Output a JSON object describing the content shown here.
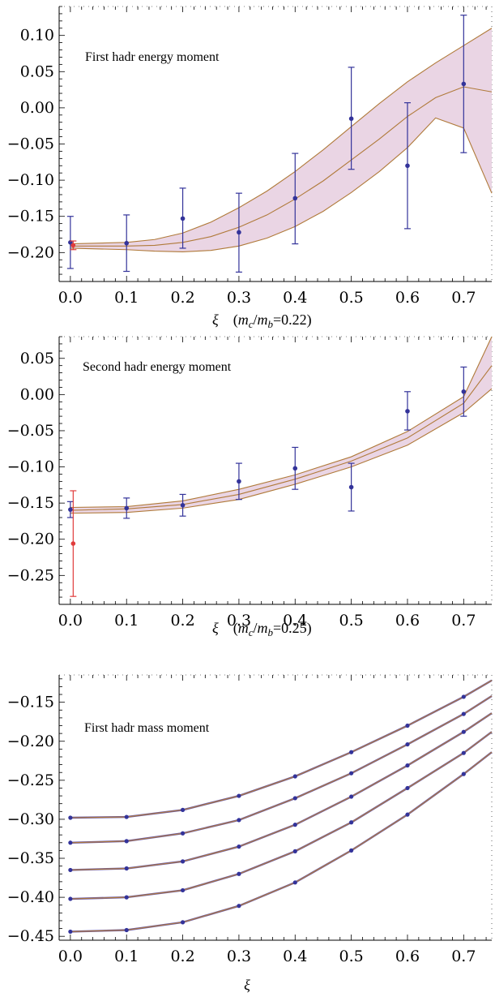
{
  "chart_data": [
    {
      "type": "line",
      "title": "First hadr energy moment",
      "xlabel": "ξ",
      "xlabel_suffix": "(m_c/m_b=0.22)",
      "xlabel_parts": {
        "sym": "ξ",
        "open": "(",
        "m": "m",
        "c": "c",
        "slash": "/",
        "b": "b",
        "eq": "=0.22",
        "close": ")"
      },
      "xlim": [
        -0.02,
        0.75
      ],
      "ylim": [
        -0.24,
        0.14
      ],
      "x_ticks": [
        "0.0",
        "0.1",
        "0.2",
        "0.3",
        "0.4",
        "0.5",
        "0.6",
        "0.7"
      ],
      "y_ticks": [
        {
          "v": 0.1,
          "label": "0.10"
        },
        {
          "v": 0.05,
          "label": "0.05"
        },
        {
          "v": 0.0,
          "label": "0.00"
        },
        {
          "v": -0.05,
          "label": "−0.05"
        },
        {
          "v": -0.1,
          "label": "−0.10"
        },
        {
          "v": -0.15,
          "label": "−0.15"
        },
        {
          "v": -0.2,
          "label": "−0.20"
        }
      ],
      "band": {
        "x": [
          0.0,
          0.1,
          0.15,
          0.2,
          0.25,
          0.3,
          0.35,
          0.4,
          0.45,
          0.5,
          0.55,
          0.6,
          0.65,
          0.7,
          0.75
        ],
        "upper": [
          -0.188,
          -0.186,
          -0.182,
          -0.173,
          -0.158,
          -0.138,
          -0.115,
          -0.088,
          -0.058,
          -0.026,
          0.006,
          0.036,
          0.062,
          0.086,
          0.11
        ],
        "center": [
          -0.191,
          -0.191,
          -0.19,
          -0.186,
          -0.178,
          -0.165,
          -0.148,
          -0.126,
          -0.101,
          -0.072,
          -0.043,
          -0.012,
          0.014,
          0.029,
          0.022
        ],
        "lower": [
          -0.194,
          -0.196,
          -0.198,
          -0.199,
          -0.197,
          -0.191,
          -0.18,
          -0.164,
          -0.143,
          -0.117,
          -0.088,
          -0.055,
          -0.014,
          -0.028,
          -0.118
        ]
      },
      "series": [
        {
          "color": "#33339a",
          "x": [
            0.0,
            0.1,
            0.2,
            0.3,
            0.4,
            0.5,
            0.6,
            0.7
          ],
          "y": [
            -0.186,
            -0.187,
            -0.153,
            -0.172,
            -0.125,
            -0.015,
            -0.08,
            0.033
          ],
          "err_low": [
            -0.222,
            -0.226,
            -0.194,
            -0.227,
            -0.188,
            -0.085,
            -0.167,
            -0.062
          ],
          "err_high": [
            -0.15,
            -0.148,
            -0.111,
            -0.118,
            -0.063,
            0.056,
            0.007,
            0.128
          ]
        },
        {
          "color": "#e03c3c",
          "x": [
            0.005
          ],
          "y": [
            -0.19
          ],
          "err_low": [
            -0.196
          ],
          "err_high": [
            -0.184
          ]
        }
      ]
    },
    {
      "type": "line",
      "title": "Second hadr energy moment",
      "xlabel": "ξ",
      "xlabel_suffix": "(m_c/m_b=0.25)",
      "xlabel_parts": {
        "sym": "ξ",
        "open": "(",
        "m": "m",
        "c": "c",
        "slash": "/",
        "b": "b",
        "eq": "=0.25",
        "close": ")"
      },
      "xlim": [
        -0.02,
        0.75
      ],
      "ylim": [
        -0.29,
        0.08
      ],
      "x_ticks": [
        "0.0",
        "0.1",
        "0.2",
        "0.3",
        "0.4",
        "0.5",
        "0.6",
        "0.7"
      ],
      "y_ticks": [
        {
          "v": 0.05,
          "label": "0.05"
        },
        {
          "v": 0.0,
          "label": "0.00"
        },
        {
          "v": -0.05,
          "label": "−0.05"
        },
        {
          "v": -0.1,
          "label": "−0.10"
        },
        {
          "v": -0.15,
          "label": "−0.15"
        },
        {
          "v": -0.2,
          "label": "−0.20"
        },
        {
          "v": -0.25,
          "label": "−0.25"
        }
      ],
      "band": {
        "x": [
          0.0,
          0.1,
          0.2,
          0.3,
          0.4,
          0.5,
          0.6,
          0.7,
          0.75
        ],
        "upper": [
          -0.156,
          -0.155,
          -0.147,
          -0.131,
          -0.111,
          -0.086,
          -0.051,
          -0.003,
          0.08
        ],
        "center": [
          -0.16,
          -0.158,
          -0.152,
          -0.138,
          -0.117,
          -0.092,
          -0.06,
          -0.012,
          0.04
        ],
        "lower": [
          -0.164,
          -0.163,
          -0.157,
          -0.145,
          -0.124,
          -0.1,
          -0.07,
          -0.025,
          0.008
        ]
      },
      "series": [
        {
          "color": "#33339a",
          "x": [
            0.0,
            0.1,
            0.2,
            0.3,
            0.4,
            0.5,
            0.6,
            0.7
          ],
          "y": [
            -0.159,
            -0.157,
            -0.153,
            -0.12,
            -0.102,
            -0.128,
            -0.023,
            0.004
          ],
          "err_low": [
            -0.17,
            -0.171,
            -0.168,
            -0.145,
            -0.131,
            -0.161,
            -0.049,
            -0.03
          ],
          "err_high": [
            -0.148,
            -0.143,
            -0.138,
            -0.095,
            -0.073,
            -0.095,
            0.004,
            0.038
          ]
        },
        {
          "color": "#e03c3c",
          "x": [
            0.005
          ],
          "y": [
            -0.206
          ],
          "err_low": [
            -0.279
          ],
          "err_high": [
            -0.133
          ]
        }
      ]
    },
    {
      "type": "line",
      "title": "First hadr mass moment",
      "xlabel": "ξ",
      "xlim": [
        -0.02,
        0.75
      ],
      "ylim": [
        -0.455,
        -0.115
      ],
      "x_ticks": [
        "0.0",
        "0.1",
        "0.2",
        "0.3",
        "0.4",
        "0.5",
        "0.6",
        "0.7"
      ],
      "y_ticks": [
        {
          "v": -0.15,
          "label": "−0.15"
        },
        {
          "v": -0.2,
          "label": "−0.20"
        },
        {
          "v": -0.25,
          "label": "−0.25"
        },
        {
          "v": -0.3,
          "label": "−0.30"
        },
        {
          "v": -0.35,
          "label": "−0.35"
        },
        {
          "v": -0.4,
          "label": "−0.40"
        },
        {
          "v": -0.45,
          "label": "−0.45"
        }
      ],
      "curves_x": [
        0.0,
        0.1,
        0.2,
        0.3,
        0.4,
        0.5,
        0.6,
        0.7,
        0.75
      ],
      "series": [
        {
          "y": [
            -0.298,
            -0.297,
            -0.288,
            -0.27,
            -0.245,
            -0.214,
            -0.18,
            -0.143,
            -0.122
          ]
        },
        {
          "y": [
            -0.33,
            -0.328,
            -0.318,
            -0.301,
            -0.273,
            -0.241,
            -0.204,
            -0.165,
            -0.142
          ]
        },
        {
          "y": [
            -0.365,
            -0.363,
            -0.354,
            -0.335,
            -0.307,
            -0.271,
            -0.231,
            -0.188,
            -0.164
          ]
        },
        {
          "y": [
            -0.402,
            -0.4,
            -0.391,
            -0.37,
            -0.341,
            -0.304,
            -0.26,
            -0.215,
            -0.188
          ]
        },
        {
          "y": [
            -0.444,
            -0.442,
            -0.432,
            -0.411,
            -0.381,
            -0.34,
            -0.294,
            -0.242,
            -0.214
          ]
        }
      ]
    }
  ],
  "colors": {
    "band_fill": "#ead5e4",
    "band_edge": "#b07a3a",
    "center_line": "#b07a3a",
    "points": "#33339a",
    "highlight": "#e03c3c"
  }
}
